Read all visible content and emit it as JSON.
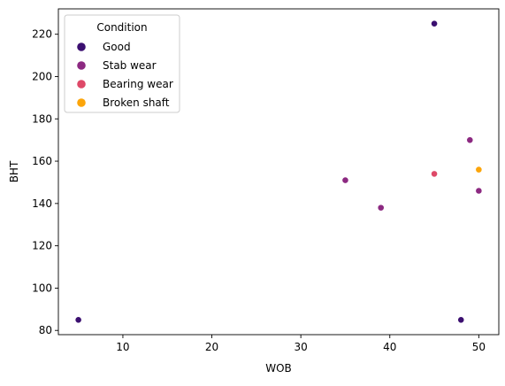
{
  "chart_data": {
    "type": "scatter",
    "xlabel": "WOB",
    "ylabel": "BHT",
    "xlim": [
      2.75,
      52.25
    ],
    "ylim": [
      78,
      232
    ],
    "xticks": [
      10,
      20,
      30,
      40,
      50
    ],
    "yticks": [
      80,
      100,
      120,
      140,
      160,
      180,
      200,
      220
    ],
    "grid": false,
    "legend": {
      "title": "Condition",
      "placement": "upper-left"
    },
    "series": [
      {
        "name": "Good",
        "color": "#3b0f70",
        "points": [
          {
            "x": 5,
            "y": 85
          },
          {
            "x": 45,
            "y": 225
          },
          {
            "x": 48,
            "y": 85
          }
        ]
      },
      {
        "name": "Stab wear",
        "color": "#8c2981",
        "points": [
          {
            "x": 35,
            "y": 151
          },
          {
            "x": 39,
            "y": 138
          },
          {
            "x": 49,
            "y": 170
          },
          {
            "x": 50,
            "y": 146
          }
        ]
      },
      {
        "name": "Bearing wear",
        "color": "#de4968",
        "points": [
          {
            "x": 45,
            "y": 154
          }
        ]
      },
      {
        "name": "Broken shaft",
        "color": "#fca50a",
        "points": [
          {
            "x": 50,
            "y": 156
          }
        ]
      }
    ]
  }
}
